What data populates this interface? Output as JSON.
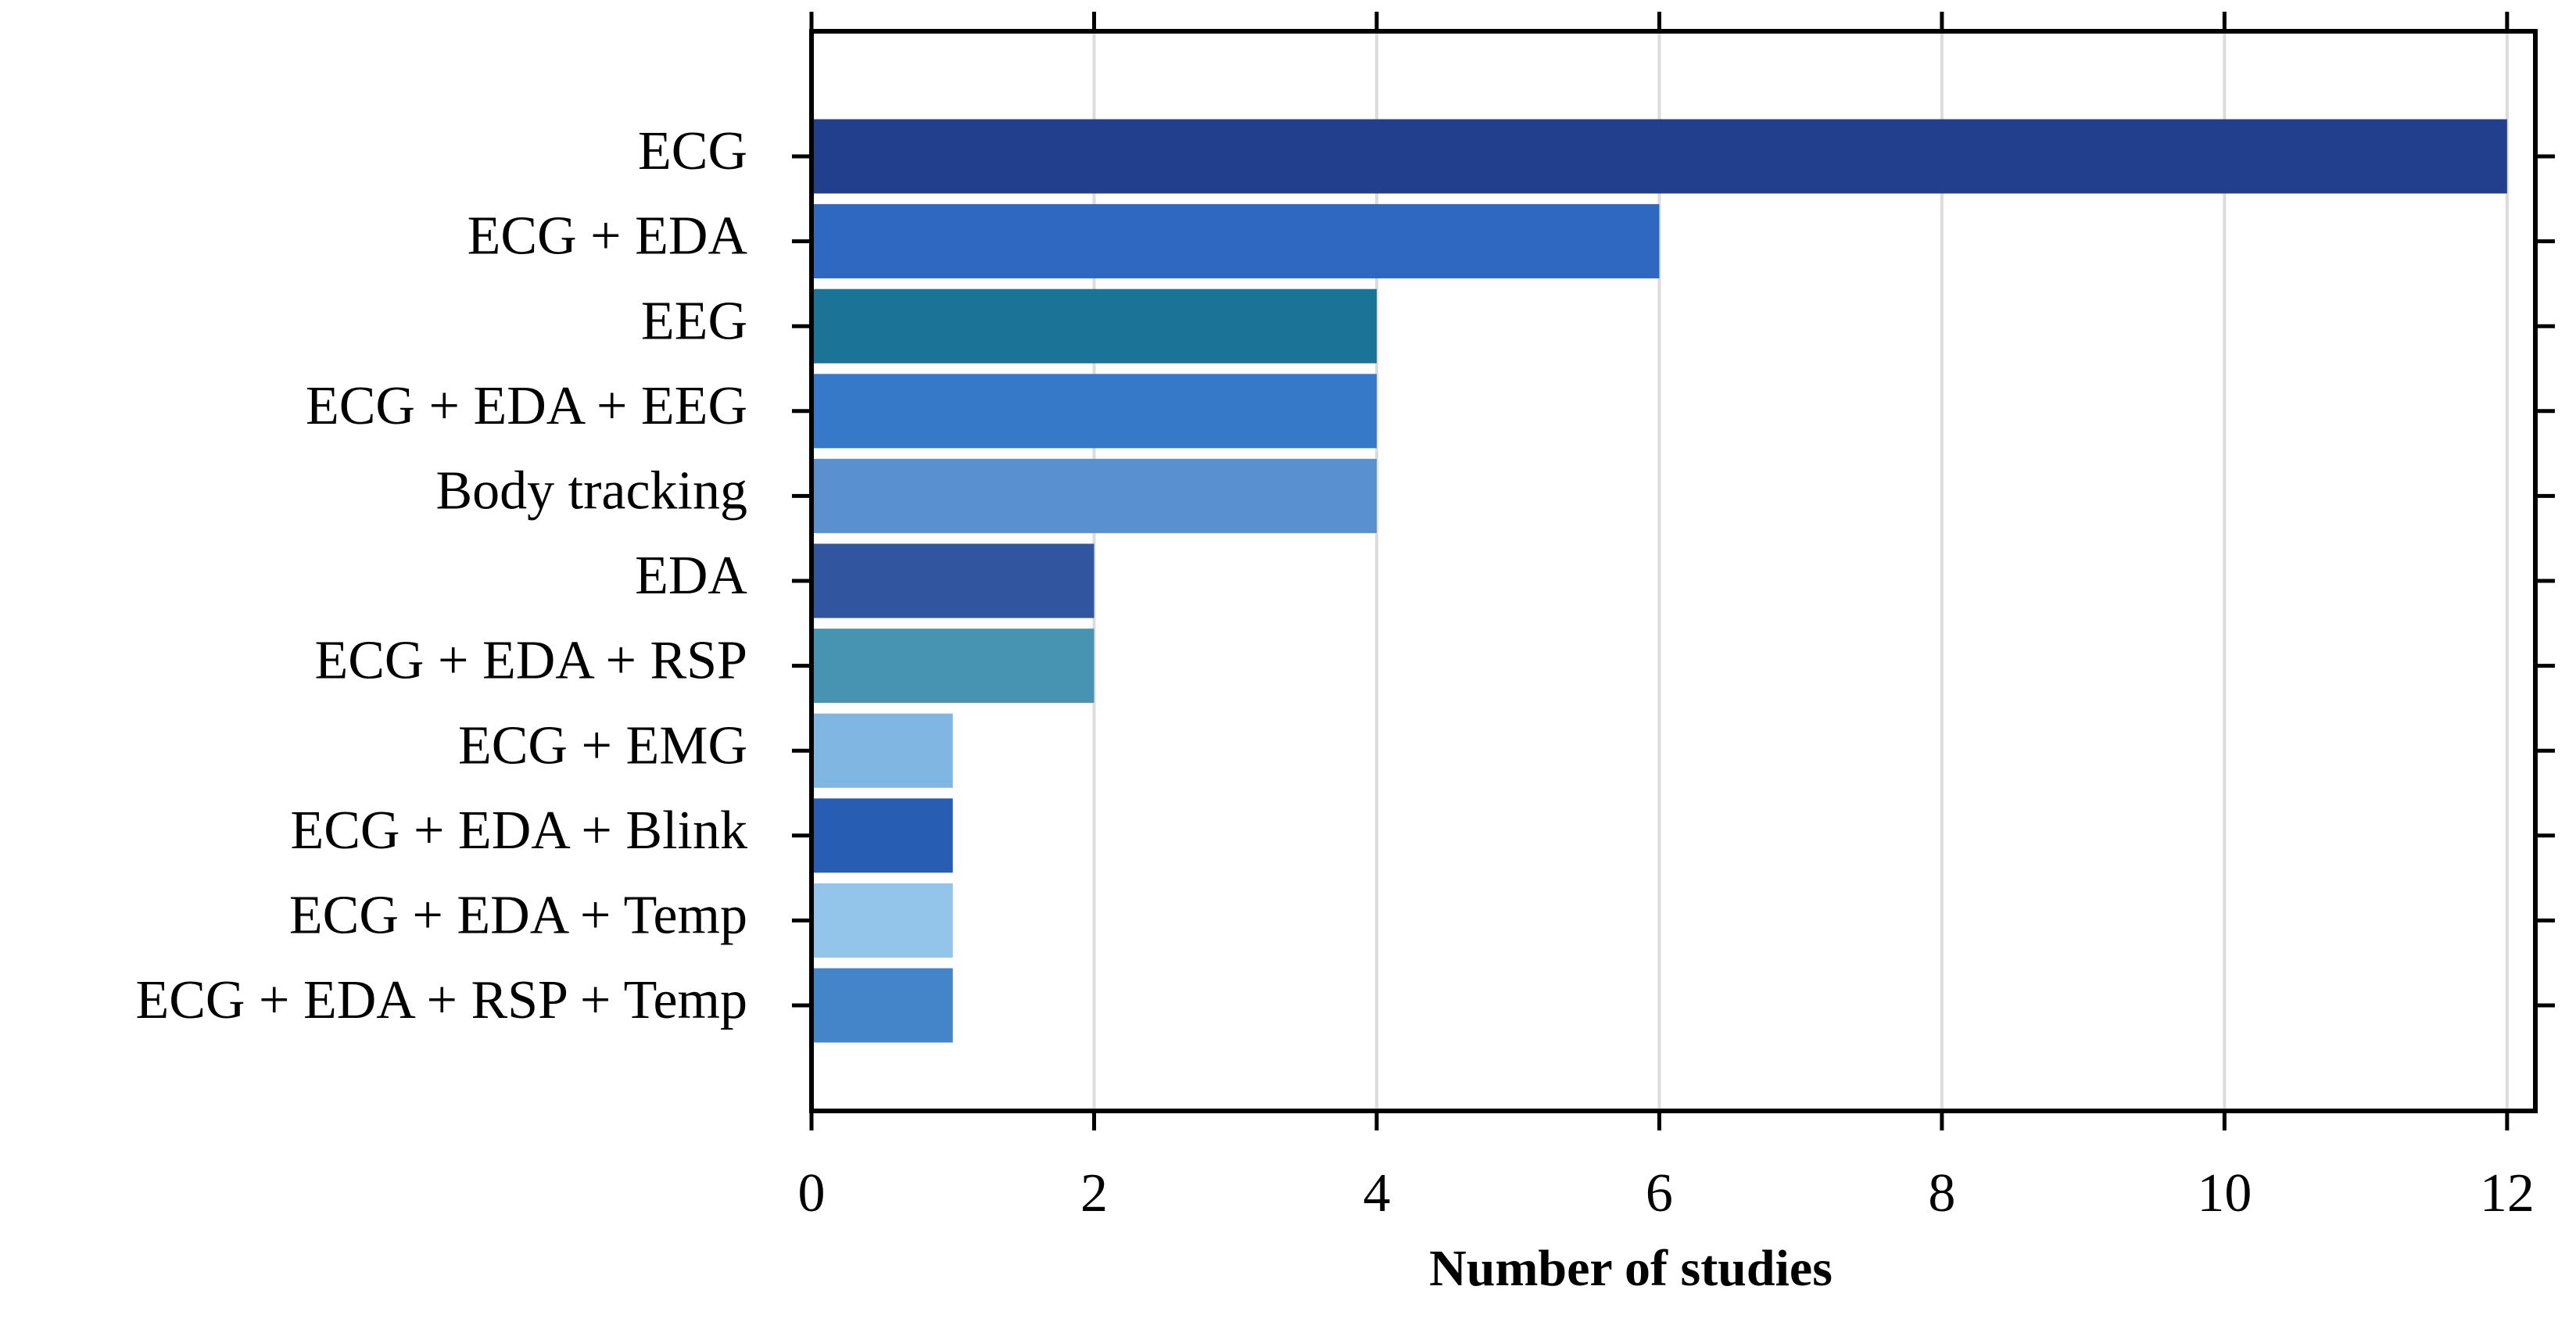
{
  "chart_data": {
    "type": "barh",
    "x_label": "Number of studies",
    "categories": [
      "ECG",
      "ECG + EDA",
      "EEG",
      "ECG + EDA + EEG",
      "Body tracking",
      "EDA",
      "ECG + EDA + RSP",
      "ECG + EMG",
      "ECG + EDA + Blink",
      "ECG + EDA + Temp",
      "ECG + EDA + RSP + Temp"
    ],
    "values": [
      12,
      6,
      4,
      4,
      4,
      2,
      2,
      1,
      1,
      1,
      1
    ],
    "colors": [
      "#213f8d",
      "#2e68c0",
      "#1b7398",
      "#3779c9",
      "#5890d0",
      "#31559e",
      "#4794b2",
      "#7fb6e2",
      "#275db3",
      "#93c4ea",
      "#4484c8"
    ],
    "xlim": [
      0,
      12.2
    ],
    "xticks": [
      0,
      2,
      4,
      6,
      8,
      10,
      12
    ],
    "grid": true
  }
}
